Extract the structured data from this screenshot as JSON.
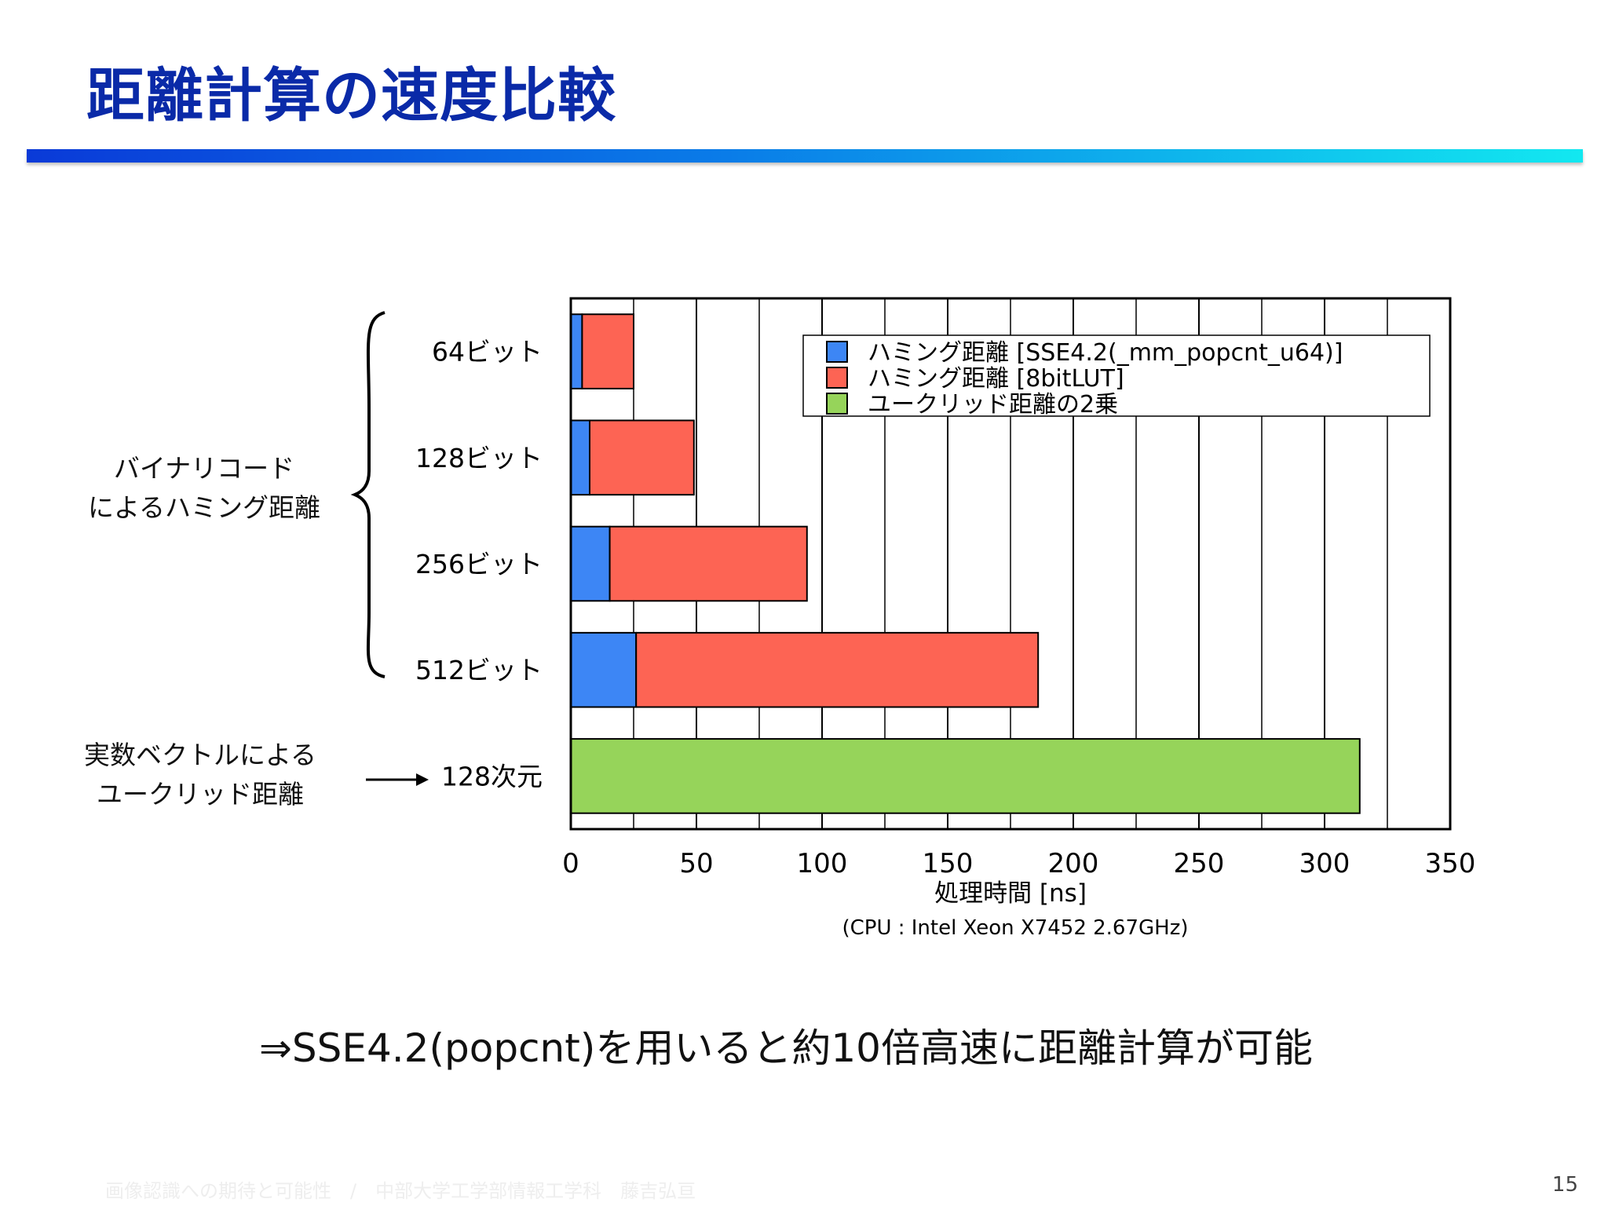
{
  "slide": {
    "title": "距離計算の速度比較",
    "group_hamming_line1": "バイナリコード",
    "group_hamming_line2": "によるハミング距離",
    "group_euclid_line1": "実数ベクトルによる",
    "group_euclid_line2": "ユークリッド距離",
    "conclusion": "⇒SSE4.2(popcnt)を用いると約10倍高速に距離計算が可能",
    "footer": "画像認識への期待と可能性　/　中部大学工学部情報工学科　藤吉弘亘",
    "page_number": "15"
  },
  "chart_data": {
    "type": "bar",
    "orientation": "horizontal",
    "stacked": true,
    "categories": [
      "64ビット",
      "128ビット",
      "256ビット",
      "512ビット",
      "128次元"
    ],
    "series": [
      {
        "name": "ハミング距離 [SSE4.2(_mm_popcnt_u64)]",
        "color": "#3d86f5",
        "values": [
          4.5,
          7.5,
          15.5,
          26,
          0
        ]
      },
      {
        "name": "ハミング距離 [8bitLUT]",
        "color": "#fd6454",
        "values": [
          20.5,
          41.5,
          78.5,
          160,
          0
        ]
      },
      {
        "name": "ユークリッド距離の2乗",
        "color": "#96d45a",
        "values": [
          0,
          0,
          0,
          0,
          314
        ]
      }
    ],
    "xlim": [
      0,
      350
    ],
    "xticks": [
      0,
      50,
      100,
      150,
      200,
      250,
      300,
      350
    ],
    "xlabel": "処理時間 [ns]",
    "subtitle": "(CPU : Intel Xeon X7452 2.67GHz)",
    "grid": "vertical",
    "legend_position": "top-right"
  }
}
